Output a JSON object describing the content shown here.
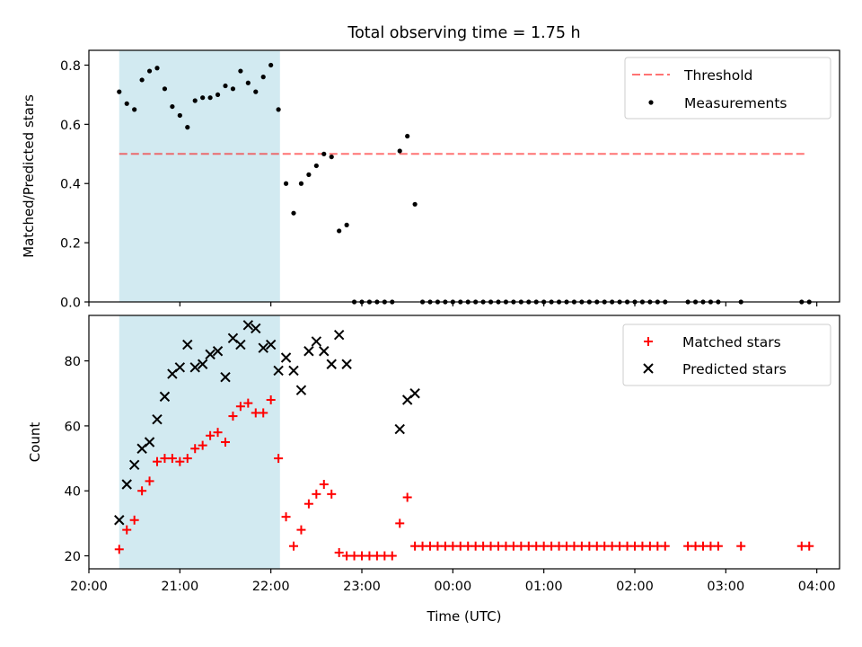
{
  "figure": {
    "title": "Total observing time = 1.75 h"
  },
  "chart_data": [
    {
      "type": "scatter",
      "panel": "top",
      "ylabel": "Matched/Predicted stars",
      "xlabel": "",
      "ylim": [
        0,
        0.85
      ],
      "yticks": [
        0.0,
        0.2,
        0.4,
        0.6,
        0.8
      ],
      "ytick_labels": [
        "0.0",
        "0.2",
        "0.4",
        "0.6",
        "0.8"
      ],
      "xlim": [
        "20:00",
        "04:15"
      ],
      "highlight_span": [
        "20:20",
        "22:06"
      ],
      "threshold": {
        "value": 0.5,
        "from": "20:20",
        "to": "03:54"
      },
      "legend": {
        "position": "top-right",
        "entries": [
          "Threshold",
          "Measurements"
        ]
      },
      "series": [
        {
          "name": "Measurements",
          "marker": "dot",
          "color": "#000000",
          "x": [
            "20:20",
            "20:25",
            "20:30",
            "20:35",
            "20:40",
            "20:45",
            "20:50",
            "20:55",
            "21:00",
            "21:05",
            "21:10",
            "21:15",
            "21:20",
            "21:25",
            "21:30",
            "21:35",
            "21:40",
            "21:45",
            "21:50",
            "21:55",
            "22:00",
            "22:05",
            "22:10",
            "22:15",
            "22:20",
            "22:25",
            "22:30",
            "22:35",
            "22:40",
            "22:45",
            "22:50",
            "23:25",
            "23:30",
            "23:35",
            "22:55",
            "23:00",
            "23:05",
            "23:10",
            "23:15",
            "23:20",
            "23:40",
            "23:45",
            "23:50",
            "23:55",
            "00:00",
            "00:05",
            "00:10",
            "00:15",
            "00:20",
            "00:25",
            "00:30",
            "00:35",
            "00:40",
            "00:45",
            "00:50",
            "00:55",
            "01:00",
            "01:05",
            "01:10",
            "01:15",
            "01:20",
            "01:25",
            "01:30",
            "01:35",
            "01:40",
            "01:45",
            "01:50",
            "01:55",
            "02:00",
            "02:05",
            "02:10",
            "02:15",
            "02:20",
            "02:35",
            "02:40",
            "02:45",
            "02:50",
            "02:55",
            "03:10",
            "03:50",
            "03:55"
          ],
          "y": [
            0.71,
            0.67,
            0.65,
            0.75,
            0.78,
            0.79,
            0.72,
            0.66,
            0.63,
            0.59,
            0.68,
            0.69,
            0.69,
            0.7,
            0.73,
            0.72,
            0.78,
            0.74,
            0.71,
            0.76,
            0.8,
            0.65,
            0.4,
            0.3,
            0.4,
            0.43,
            0.46,
            0.5,
            0.49,
            0.24,
            0.26,
            0.51,
            0.56,
            0.33,
            0,
            0,
            0,
            0,
            0,
            0,
            0,
            0,
            0,
            0,
            0,
            0,
            0,
            0,
            0,
            0,
            0,
            0,
            0,
            0,
            0,
            0,
            0,
            0,
            0,
            0,
            0,
            0,
            0,
            0,
            0,
            0,
            0,
            0,
            0,
            0,
            0,
            0,
            0,
            0,
            0,
            0,
            0,
            0,
            0,
            0,
            0
          ]
        }
      ]
    },
    {
      "type": "scatter",
      "panel": "bottom",
      "ylabel": "Count",
      "xlabel": "Time (UTC)",
      "ylim": [
        16,
        94
      ],
      "yticks": [
        20,
        40,
        60,
        80
      ],
      "ytick_labels": [
        "20",
        "40",
        "60",
        "80"
      ],
      "xlim": [
        "20:00",
        "04:15"
      ],
      "xticks": [
        "20:00",
        "21:00",
        "22:00",
        "23:00",
        "00:00",
        "01:00",
        "02:00",
        "03:00",
        "04:00"
      ],
      "xtick_labels": [
        "20:00",
        "21:00",
        "22:00",
        "23:00",
        "00:00",
        "01:00",
        "02:00",
        "03:00",
        "04:00"
      ],
      "highlight_span": [
        "20:20",
        "22:06"
      ],
      "legend": {
        "position": "top-right",
        "entries": [
          "Matched stars",
          "Predicted stars"
        ]
      },
      "series": [
        {
          "name": "Matched stars",
          "marker": "plus",
          "color": "#ff0000",
          "x": [
            "20:20",
            "20:25",
            "20:30",
            "20:35",
            "20:40",
            "20:45",
            "20:50",
            "20:55",
            "21:00",
            "21:05",
            "21:10",
            "21:15",
            "21:20",
            "21:25",
            "21:30",
            "21:35",
            "21:40",
            "21:45",
            "21:50",
            "21:55",
            "22:00",
            "22:05",
            "22:10",
            "22:15",
            "22:20",
            "22:25",
            "22:30",
            "22:35",
            "22:40",
            "22:45",
            "22:50",
            "22:55",
            "23:00",
            "23:05",
            "23:10",
            "23:15",
            "23:20",
            "23:25",
            "23:30",
            "23:35",
            "23:40",
            "23:45",
            "23:50",
            "23:55",
            "00:00",
            "00:05",
            "00:10",
            "00:15",
            "00:20",
            "00:25",
            "00:30",
            "00:35",
            "00:40",
            "00:45",
            "00:50",
            "00:55",
            "01:00",
            "01:05",
            "01:10",
            "01:15",
            "01:20",
            "01:25",
            "01:30",
            "01:35",
            "01:40",
            "01:45",
            "01:50",
            "01:55",
            "02:00",
            "02:05",
            "02:10",
            "02:15",
            "02:20",
            "02:35",
            "02:40",
            "02:45",
            "02:50",
            "02:55",
            "03:10",
            "03:50",
            "03:55"
          ],
          "y": [
            22,
            28,
            31,
            40,
            43,
            49,
            50,
            50,
            49,
            50,
            53,
            54,
            57,
            58,
            55,
            63,
            66,
            67,
            64,
            64,
            68,
            50,
            32,
            23,
            28,
            36,
            39,
            42,
            39,
            21,
            20,
            20,
            20,
            20,
            20,
            20,
            20,
            30,
            38,
            23,
            23,
            23,
            23,
            23,
            23,
            23,
            23,
            23,
            23,
            23,
            23,
            23,
            23,
            23,
            23,
            23,
            23,
            23,
            23,
            23,
            23,
            23,
            23,
            23,
            23,
            23,
            23,
            23,
            23,
            23,
            23,
            23,
            23,
            23,
            23,
            23,
            23,
            23,
            23,
            23,
            23
          ]
        },
        {
          "name": "Predicted stars",
          "marker": "x",
          "color": "#000000",
          "x": [
            "20:20",
            "20:25",
            "20:30",
            "20:35",
            "20:40",
            "20:45",
            "20:50",
            "20:55",
            "21:00",
            "21:05",
            "21:10",
            "21:15",
            "21:20",
            "21:25",
            "21:30",
            "21:35",
            "21:40",
            "21:45",
            "21:50",
            "21:55",
            "22:00",
            "22:05",
            "22:10",
            "22:15",
            "22:20",
            "22:25",
            "22:30",
            "22:35",
            "22:40",
            "22:45",
            "22:50",
            "23:25",
            "23:30",
            "23:35"
          ],
          "y": [
            31,
            42,
            48,
            53,
            55,
            62,
            69,
            76,
            78,
            85,
            78,
            79,
            82,
            83,
            75,
            87,
            85,
            91,
            90,
            84,
            85,
            77,
            81,
            77,
            71,
            83,
            86,
            83,
            79,
            88,
            79,
            59,
            68,
            70
          ]
        }
      ]
    }
  ]
}
